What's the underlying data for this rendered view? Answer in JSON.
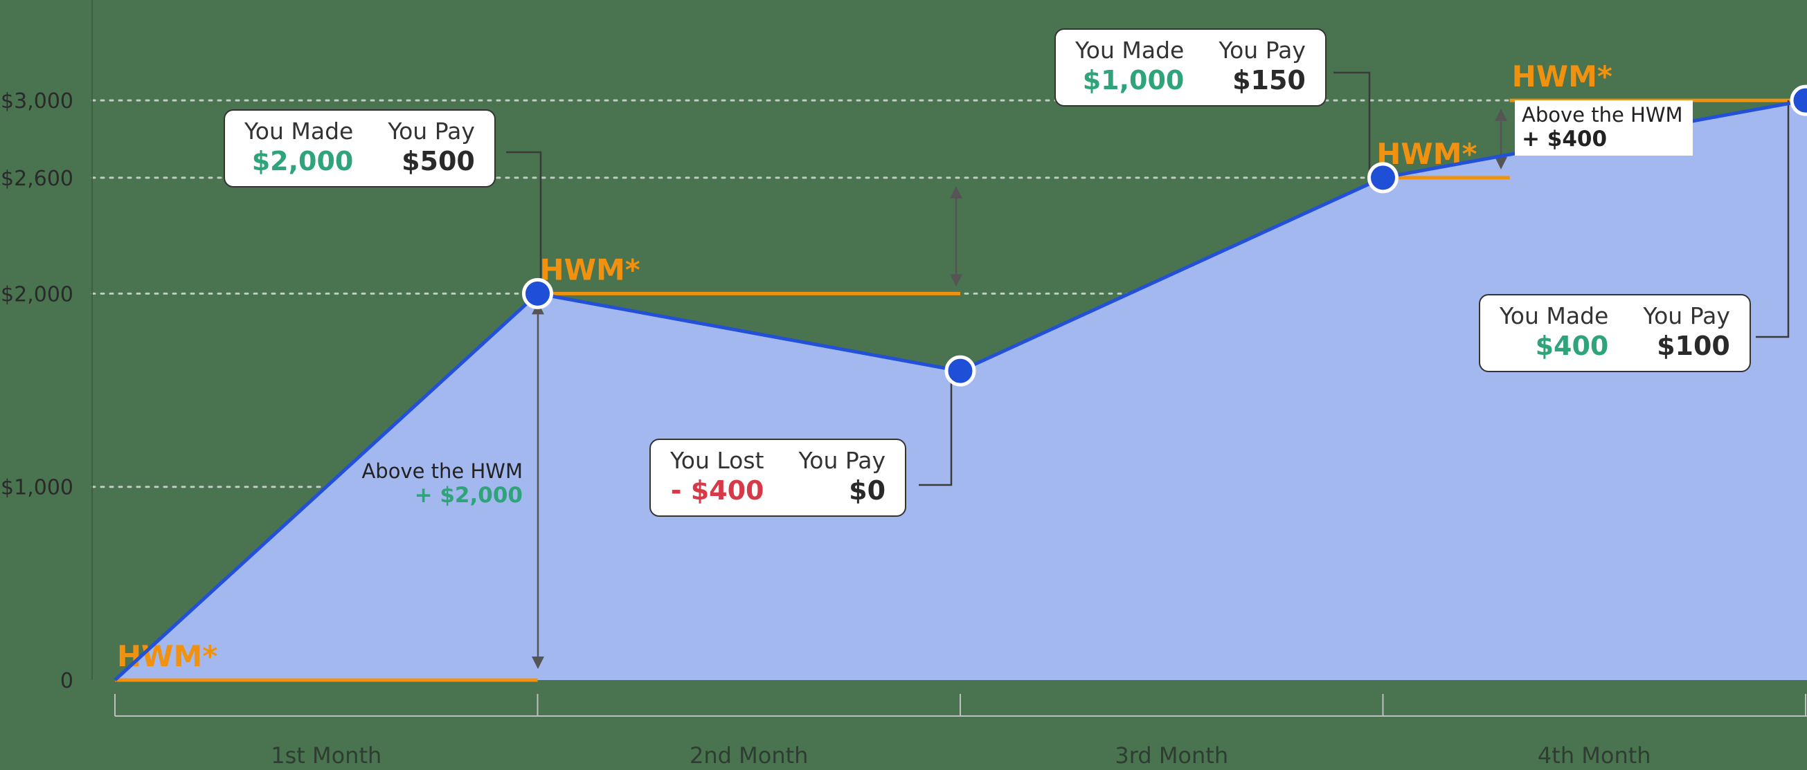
{
  "chart_data": {
    "type": "area",
    "categories": [
      "1st Month",
      "2nd Month",
      "3rd Month",
      "4th Month"
    ],
    "x": [
      0,
      1,
      2,
      3,
      4
    ],
    "values": [
      0,
      2000,
      1600,
      2600,
      3000
    ],
    "y_ticks": [
      {
        "value": 0,
        "label": "0"
      },
      {
        "value": 1000,
        "label": "$1,000"
      },
      {
        "value": 2000,
        "label": "$2,000"
      },
      {
        "value": 2600,
        "label": "$2,600"
      },
      {
        "value": 3000,
        "label": "$3,000"
      }
    ],
    "ylim": [
      0,
      3400
    ],
    "grid": "dotted horizontal at tick values",
    "hwm": [
      {
        "label": "HWM*",
        "value": 0,
        "from": 0,
        "to": 1
      },
      {
        "label": "HWM*",
        "value": 2000,
        "from": 1,
        "to": 2
      },
      {
        "label": "HWM*",
        "value": 2600,
        "from": 2.98,
        "to": 3.3
      },
      {
        "label": "HWM*",
        "value": 3000,
        "from": 3.3,
        "to": 4
      }
    ],
    "annotations": {
      "m1_above": {
        "label": "Above the HWM",
        "value": "+ $2,000"
      },
      "m4_above": {
        "label": "Above the HWM",
        "value": "+ $400"
      }
    },
    "cards": [
      {
        "h1": "You Made",
        "v1": "$2,000",
        "h2": "You Pay",
        "v2": "$500"
      },
      {
        "h1": "You Lost",
        "v1": "- $400",
        "h2": "You Pay",
        "v2": "$0"
      },
      {
        "h1": "You Made",
        "v1": "$1,000",
        "h2": "You Pay",
        "v2": "$150"
      },
      {
        "h1": "You Made",
        "v1": "$400",
        "h2": "You Pay",
        "v2": "$100"
      }
    ]
  },
  "colors": {
    "background": "#4a7350",
    "area_fill": "#a3b8ef",
    "line": "#2350d8",
    "point": "#1f4fd6",
    "hwm": "#f0920f",
    "gain": "#2fa37a",
    "loss": "#d63a48"
  }
}
